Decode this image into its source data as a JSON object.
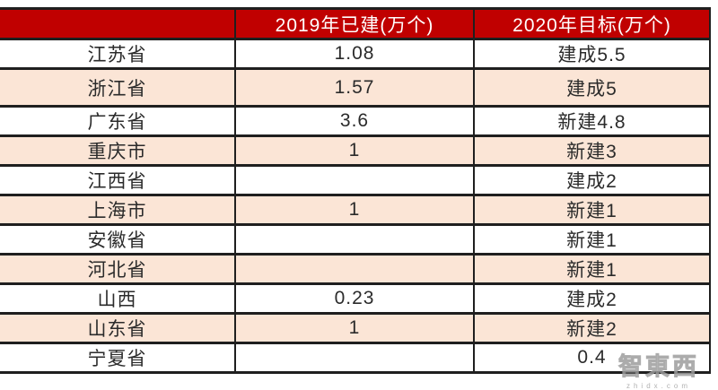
{
  "colors": {
    "header_bg": "#c00000",
    "header_text": "#ffffff",
    "stripe_bg": "#fbe5d6",
    "row_bg": "#ffffff",
    "border": "#1f1f1f",
    "body_text": "#2b2b2b"
  },
  "watermark": {
    "brand": "智東西",
    "site": "zhidx.com"
  },
  "chart_data": {
    "type": "table",
    "columns": [
      "",
      "2019年已建(万个)",
      "2020年目标(万个)"
    ],
    "rows": [
      [
        "江苏省",
        "1.08",
        "建成5.5"
      ],
      [
        "浙江省",
        "1.57",
        "建成5"
      ],
      [
        "广东省",
        "3.6",
        "新建4.8"
      ],
      [
        "重庆市",
        "1",
        "新建3"
      ],
      [
        "江西省",
        "",
        "建成2"
      ],
      [
        "上海市",
        "1",
        "新建1"
      ],
      [
        "安徽省",
        "",
        "新建1"
      ],
      [
        "河北省",
        "",
        "新建1"
      ],
      [
        "山西",
        "0.23",
        "建成2"
      ],
      [
        "山东省",
        "1",
        "新建2"
      ],
      [
        "宁夏省",
        "",
        "0.4"
      ]
    ],
    "layout": {
      "stripe_rows": "odd rows (2nd, 4th, ...) have peach background",
      "grid": true,
      "alignment": "center"
    }
  }
}
